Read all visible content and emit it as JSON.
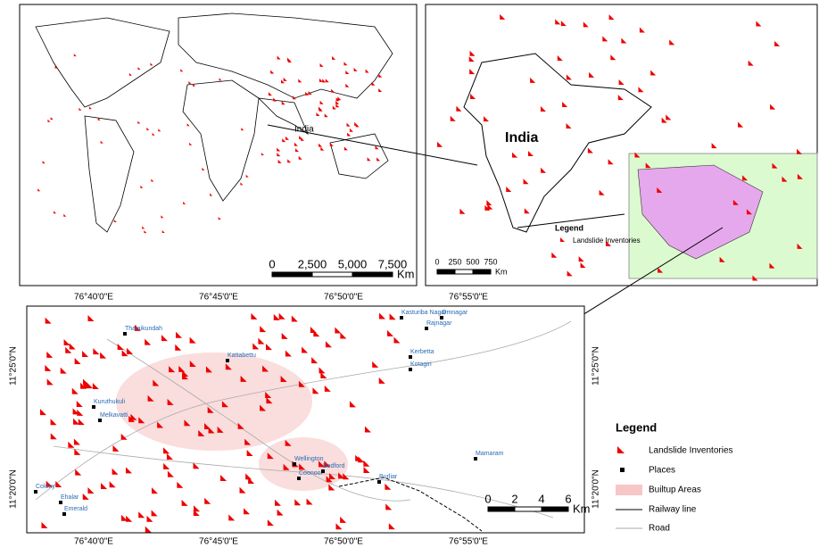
{
  "world_map": {
    "place_label": "India",
    "scale": {
      "labels": [
        "0",
        "2,500",
        "5,000",
        "7,500"
      ],
      "unit": "Km"
    }
  },
  "india_map": {
    "title": "India",
    "legend": {
      "title": "Legend",
      "items": [
        "Landslide Inventories"
      ]
    },
    "scale": {
      "labels": [
        "0",
        "250",
        "500",
        "750"
      ],
      "unit": "Km"
    }
  },
  "study_area_map": {
    "longitude_labels": [
      "76°40'0\"E",
      "76°45'0\"E",
      "76°50'0\"E",
      "76°55'0\"E"
    ],
    "latitude_labels": [
      "11°25'0\"N",
      "11°20'0\"N"
    ],
    "places": [
      "Thalaikundah",
      "Kattabettu",
      "Kasturiba Nagar",
      "Omnagar",
      "Rajnagar",
      "Kerbetta",
      "Kotagiri",
      "Kuruthukuli",
      "Melkavatti",
      "Colony",
      "Ehalar",
      "Emerald",
      "Mamaram",
      "Burliar",
      "Wellington",
      "Coonoor",
      "Bedford"
    ],
    "scale": {
      "labels": [
        "0",
        "2",
        "4",
        "6"
      ],
      "unit": "Km"
    }
  },
  "legend": {
    "title": "Legend",
    "items": [
      "Landslide Inventories",
      "Places",
      "Builtup Areas",
      "Railway line",
      "Road"
    ]
  }
}
